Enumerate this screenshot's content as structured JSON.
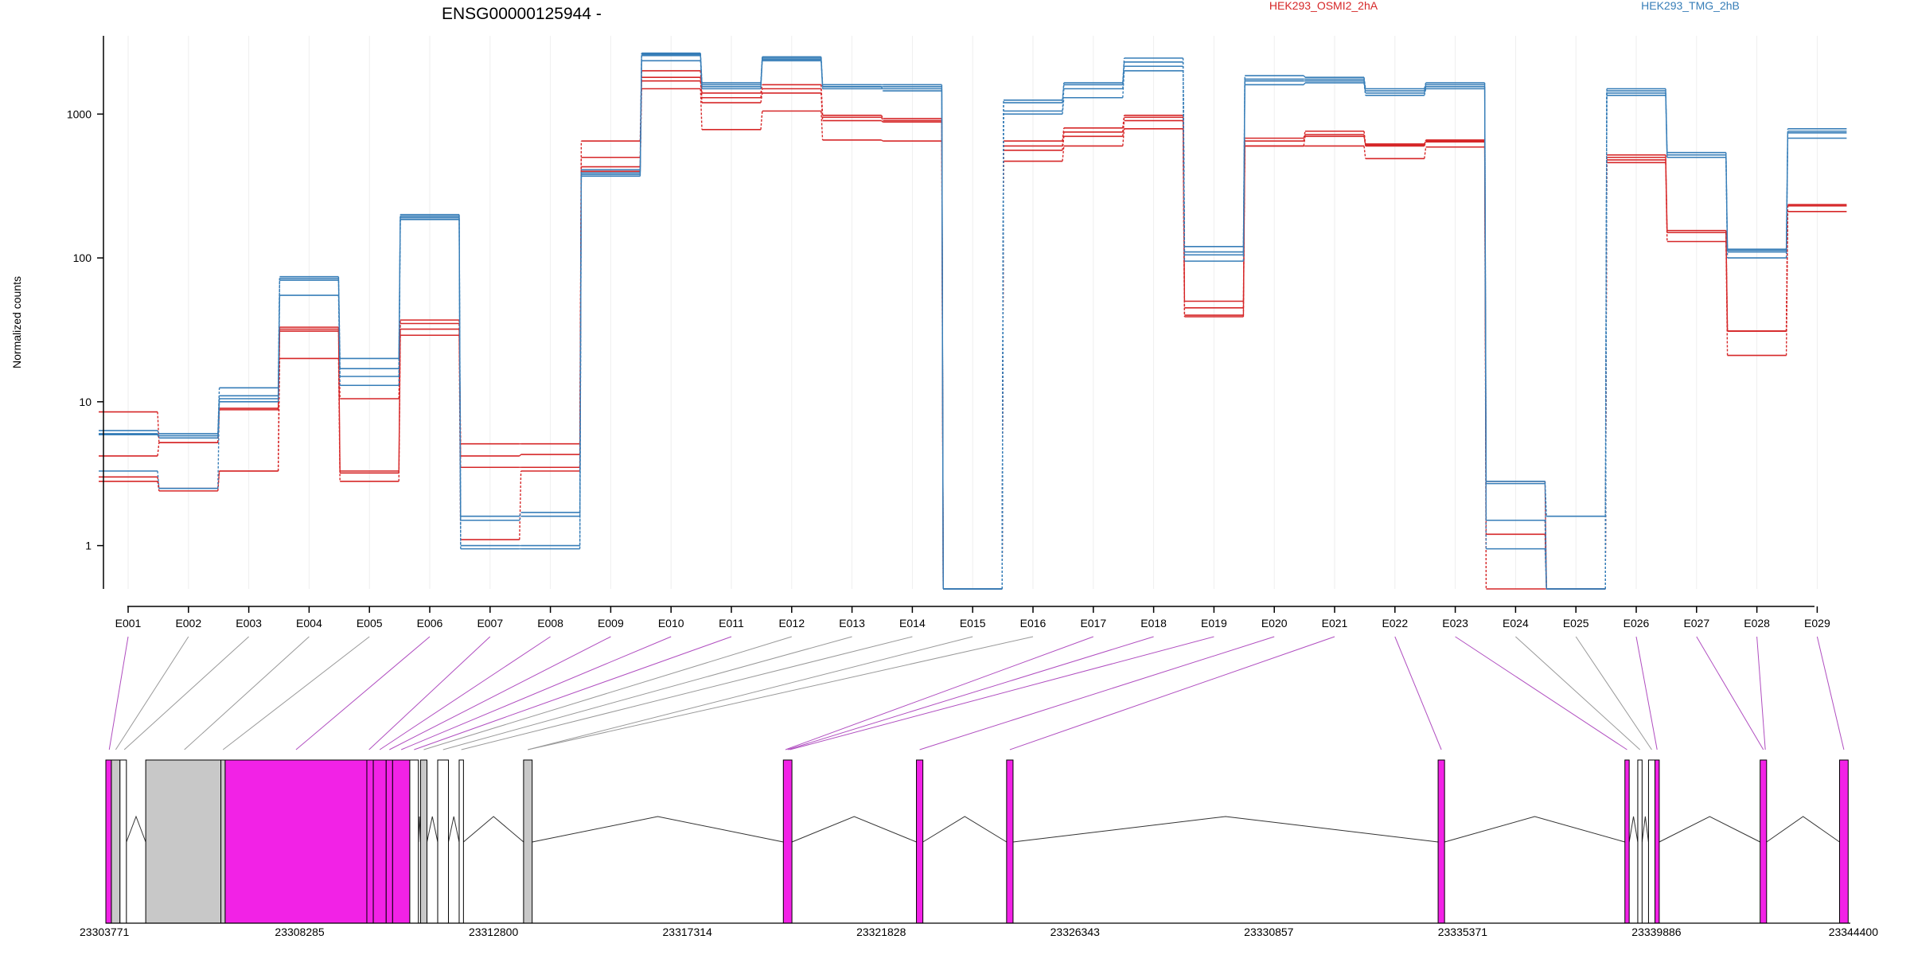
{
  "chart_data": {
    "type": "line",
    "title": "ENSG00000125944 -",
    "ylabel": "Normalized counts",
    "xlabel": "",
    "yscale": "log",
    "ylim": [
      0.5,
      3500
    ],
    "y_ticks": [
      1,
      10,
      100,
      1000
    ],
    "y_tick_labels": [
      "1",
      "10",
      "100",
      "1000"
    ],
    "grid": "vertical-faint",
    "legend": "top-right",
    "categories": [
      "E001",
      "E002",
      "E003",
      "E004",
      "E005",
      "E006",
      "E007",
      "E008",
      "E009",
      "E010",
      "E011",
      "E012",
      "E013",
      "E014",
      "E015",
      "E016",
      "E017",
      "E018",
      "E019",
      "E020",
      "E021",
      "E022",
      "E023",
      "E024",
      "E025",
      "E026",
      "E027",
      "E028",
      "E029"
    ],
    "series": [
      {
        "name": "HEK293_OSMI2_2hA",
        "group": "HEK293_OSMI2_2hA",
        "color": "#d62728",
        "values": [
          8.5,
          5.2,
          9,
          33,
          10.5,
          37,
          5.1,
          5.1,
          650,
          2000,
          1400,
          1600,
          980,
          930,
          0.5,
          650,
          800,
          980,
          50,
          680,
          760,
          620,
          650,
          2.8,
          0.5,
          520,
          155,
          31,
          235
        ]
      },
      {
        "name": "",
        "group": "HEK293_OSMI2_2hA",
        "color": "#d62728",
        "values": [
          4.2,
          5.2,
          8.8,
          31,
          3.2,
          32,
          3.5,
          3.5,
          500,
          1800,
          1200,
          1400,
          900,
          880,
          0.5,
          560,
          700,
          900,
          40,
          600,
          700,
          600,
          640,
          1.5,
          0.5,
          480,
          150,
          31,
          230
        ]
      },
      {
        "name": "",
        "group": "HEK293_OSMI2_2hA",
        "color": "#d62728",
        "values": [
          2.8,
          2.4,
          3.3,
          20,
          2.8,
          29,
          1.1,
          3.3,
          400,
          1500,
          780,
          1050,
          660,
          650,
          0.5,
          470,
          600,
          790,
          39,
          600,
          600,
          490,
          590,
          1.2,
          0.5,
          460,
          130,
          21,
          210
        ]
      },
      {
        "name": "",
        "group": "HEK293_OSMI2_2hA",
        "color": "#d62728",
        "values": [
          3.0,
          2.5,
          3.3,
          32,
          3.3,
          35,
          4.2,
          4.3,
          430,
          1700,
          1300,
          1500,
          950,
          900,
          0.5,
          600,
          750,
          950,
          45,
          650,
          720,
          610,
          660,
          0.5,
          0.5,
          500,
          150,
          31,
          230
        ]
      },
      {
        "name": "HEK293_TMG_2hB",
        "group": "HEK293_TMG_2hB",
        "color": "#377eb8",
        "values": [
          6.3,
          6.0,
          12.5,
          74,
          20,
          200,
          1.6,
          1.7,
          410,
          2650,
          1650,
          2500,
          1600,
          1600,
          0.5,
          1250,
          1650,
          2450,
          120,
          1850,
          1800,
          1500,
          1650,
          2.8,
          1.6,
          1500,
          540,
          115,
          790
        ]
      },
      {
        "name": "",
        "group": "HEK293_TMG_2hB",
        "color": "#377eb8",
        "values": [
          6.0,
          5.8,
          11,
          72,
          17,
          190,
          1.5,
          1.6,
          390,
          2600,
          1600,
          2450,
          1550,
          1550,
          0.5,
          1200,
          1600,
          2300,
          110,
          1750,
          1750,
          1450,
          1600,
          2.7,
          0.5,
          1450,
          520,
          113,
          760
        ]
      },
      {
        "name": "",
        "group": "HEK293_TMG_2hB",
        "color": "#377eb8",
        "values": [
          5.9,
          5.6,
          10,
          55,
          15,
          185,
          1.0,
          1.0,
          380,
          2350,
          1550,
          2400,
          1500,
          1500,
          0.5,
          1050,
          1500,
          2150,
          105,
          1700,
          1700,
          1400,
          1550,
          1.5,
          0.5,
          1400,
          500,
          110,
          740
        ]
      },
      {
        "name": "",
        "group": "HEK293_TMG_2hB",
        "color": "#377eb8",
        "values": [
          3.3,
          2.5,
          10.5,
          70,
          13,
          195,
          0.95,
          0.95,
          370,
          2550,
          1500,
          2350,
          1550,
          1450,
          0.5,
          1000,
          1300,
          2000,
          95,
          1600,
          1650,
          1350,
          1500,
          0.95,
          0.5,
          1350,
          500,
          100,
          680
        ]
      }
    ],
    "gene_model": {
      "coord_ticks": [
        "23303771",
        "23308285",
        "23312800",
        "23317314",
        "23321828",
        "23326343",
        "23330857",
        "23335371",
        "23339886",
        "23344400"
      ],
      "coord_range": [
        23303771,
        23344400
      ],
      "exons": [
        {
          "start": 23303771,
          "end": 23303900,
          "color": "#f222e6"
        },
        {
          "start": 23303900,
          "end": 23304100,
          "color": "#c8c8c8"
        },
        {
          "start": 23304100,
          "end": 23304250,
          "color": "#ffffff"
        },
        {
          "start": 23304700,
          "end": 23306450,
          "color": "#c8c8c8"
        },
        {
          "start": 23306450,
          "end": 23306550,
          "color": "#c8c8c8"
        },
        {
          "start": 23306550,
          "end": 23309850,
          "color": "#f222e6"
        },
        {
          "start": 23309850,
          "end": 23310000,
          "color": "#f222e6"
        },
        {
          "start": 23310000,
          "end": 23310300,
          "color": "#f222e6"
        },
        {
          "start": 23310300,
          "end": 23310450,
          "color": "#f222e6"
        },
        {
          "start": 23310450,
          "end": 23310850,
          "color": "#f222e6"
        },
        {
          "start": 23310850,
          "end": 23311050,
          "color": "#ffffff"
        },
        {
          "start": 23311100,
          "end": 23311250,
          "color": "#c8c8c8"
        },
        {
          "start": 23311500,
          "end": 23311750,
          "color": "#ffffff"
        },
        {
          "start": 23312000,
          "end": 23312100,
          "color": "#ffffff"
        },
        {
          "start": 23313500,
          "end": 23313700,
          "color": "#c8c8c8"
        },
        {
          "start": 23319550,
          "end": 23319750,
          "color": "#f222e6"
        },
        {
          "start": 23322650,
          "end": 23322800,
          "color": "#f222e6"
        },
        {
          "start": 23324750,
          "end": 23324900,
          "color": "#f222e6"
        },
        {
          "start": 23334800,
          "end": 23334950,
          "color": "#f222e6"
        },
        {
          "start": 23339150,
          "end": 23339250,
          "color": "#f222e6"
        },
        {
          "start": 23339450,
          "end": 23339550,
          "color": "#ffffff"
        },
        {
          "start": 23339700,
          "end": 23339850,
          "color": "#ffffff"
        },
        {
          "start": 23339850,
          "end": 23339950,
          "color": "#f222e6"
        },
        {
          "start": 23342300,
          "end": 23342450,
          "color": "#f222e6"
        },
        {
          "start": 23344150,
          "end": 23344350,
          "color": "#f222e6"
        }
      ],
      "exon_links": [
        {
          "bin": "E001",
          "coord": 23303850,
          "color": "#b04ec0"
        },
        {
          "bin": "E002",
          "coord": 23304000,
          "color": "#999999"
        },
        {
          "bin": "E003",
          "coord": 23304200,
          "color": "#999999"
        },
        {
          "bin": "E004",
          "coord": 23305600,
          "color": "#999999"
        },
        {
          "bin": "E005",
          "coord": 23306500,
          "color": "#999999"
        },
        {
          "bin": "E006",
          "coord": 23308200,
          "color": "#b04ec0"
        },
        {
          "bin": "E007",
          "coord": 23309900,
          "color": "#b04ec0"
        },
        {
          "bin": "E008",
          "coord": 23310150,
          "color": "#b04ec0"
        },
        {
          "bin": "E009",
          "coord": 23310375,
          "color": "#b04ec0"
        },
        {
          "bin": "E010",
          "coord": 23310650,
          "color": "#b04ec0"
        },
        {
          "bin": "E011",
          "coord": 23310950,
          "color": "#b04ec0"
        },
        {
          "bin": "E012",
          "coord": 23311175,
          "color": "#999999"
        },
        {
          "bin": "E013",
          "coord": 23311625,
          "color": "#999999"
        },
        {
          "bin": "E014",
          "coord": 23312050,
          "color": "#999999"
        },
        {
          "bin": "E015",
          "coord": 23313600,
          "color": "#999999"
        },
        {
          "bin": "E016",
          "coord": 23313600,
          "color": "#999999"
        },
        {
          "bin": "E017",
          "coord": 23319600,
          "color": "#b04ec0"
        },
        {
          "bin": "E018",
          "coord": 23319650,
          "color": "#b04ec0"
        },
        {
          "bin": "E019",
          "coord": 23319700,
          "color": "#b04ec0"
        },
        {
          "bin": "E020",
          "coord": 23322725,
          "color": "#b04ec0"
        },
        {
          "bin": "E021",
          "coord": 23324825,
          "color": "#b04ec0"
        },
        {
          "bin": "E022",
          "coord": 23334875,
          "color": "#b04ec0"
        },
        {
          "bin": "E023",
          "coord": 23339200,
          "color": "#b04ec0"
        },
        {
          "bin": "E024",
          "coord": 23339500,
          "color": "#999999"
        },
        {
          "bin": "E025",
          "coord": 23339775,
          "color": "#999999"
        },
        {
          "bin": "E026",
          "coord": 23339900,
          "color": "#b04ec0"
        },
        {
          "bin": "E027",
          "coord": 23342375,
          "color": "#b04ec0"
        },
        {
          "bin": "E028",
          "coord": 23342420,
          "color": "#b04ec0"
        },
        {
          "bin": "E029",
          "coord": 23344250,
          "color": "#b04ec0"
        }
      ]
    }
  }
}
